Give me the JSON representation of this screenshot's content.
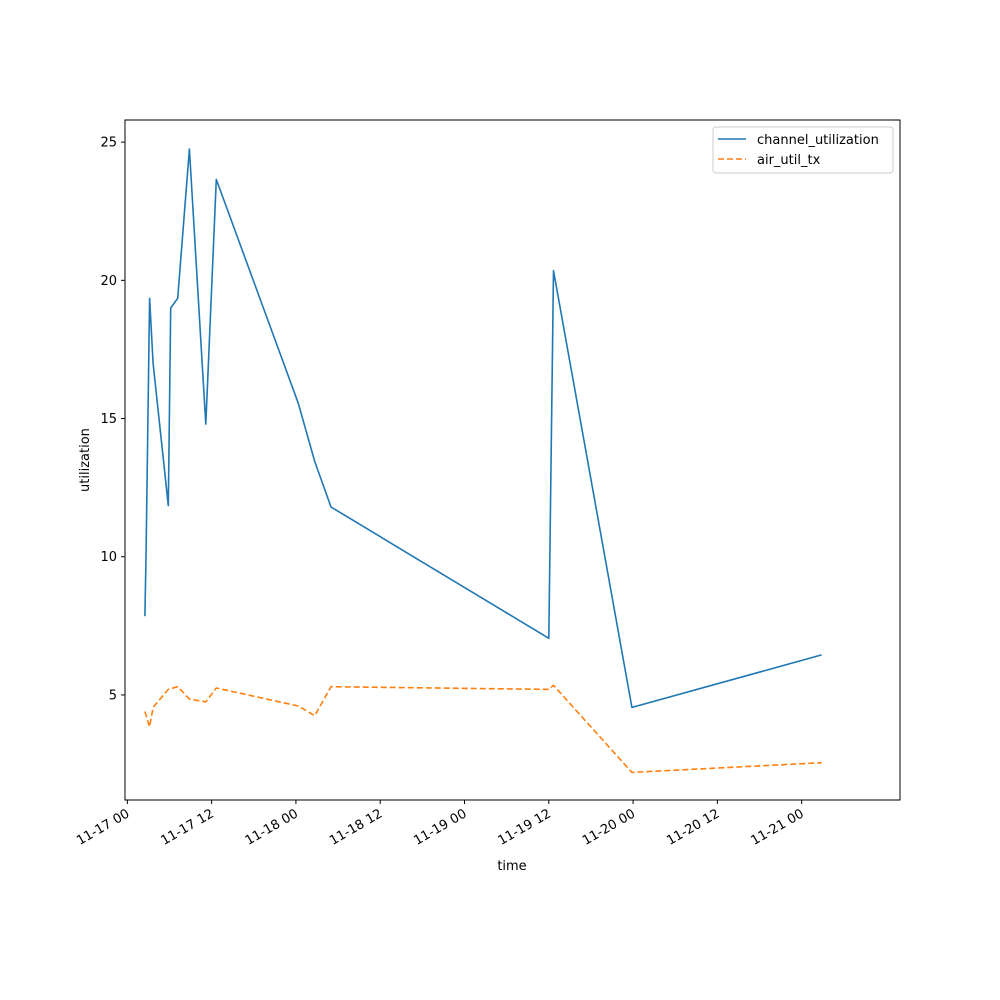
{
  "chart_data": {
    "type": "line",
    "xlabel": "time",
    "ylabel": "utilization",
    "x_type": "datetime",
    "xlim": [
      "2024-11-16T23:40",
      "2024-11-21T14:00"
    ],
    "ylim": [
      1.2,
      25.8
    ],
    "xticks": [
      {
        "value": "2024-11-17T00:00",
        "label": "11-17 00"
      },
      {
        "value": "2024-11-17T12:00",
        "label": "11-17 12"
      },
      {
        "value": "2024-11-18T00:00",
        "label": "11-18 00"
      },
      {
        "value": "2024-11-18T12:00",
        "label": "11-18 12"
      },
      {
        "value": "2024-11-19T00:00",
        "label": "11-19 00"
      },
      {
        "value": "2024-11-19T12:00",
        "label": "11-19 12"
      },
      {
        "value": "2024-11-20T00:00",
        "label": "11-20 00"
      },
      {
        "value": "2024-11-20T12:00",
        "label": "11-20 12"
      },
      {
        "value": "2024-11-21T00:00",
        "label": "11-21 00"
      }
    ],
    "yticks": [
      {
        "value": 5,
        "label": "5"
      },
      {
        "value": 10,
        "label": "10"
      },
      {
        "value": 15,
        "label": "15"
      },
      {
        "value": 20,
        "label": "20"
      },
      {
        "value": 25,
        "label": "25"
      }
    ],
    "legend_position": "top-right",
    "grid": false,
    "series": [
      {
        "name": "channel_utilization",
        "color": "#1f77b4",
        "dash": "solid",
        "points": [
          {
            "x": "2024-11-17T02:30",
            "y": 7.85
          },
          {
            "x": "2024-11-17T02:40",
            "y": 10.2
          },
          {
            "x": "2024-11-17T03:10",
            "y": 19.35
          },
          {
            "x": "2024-11-17T03:40",
            "y": 17.0
          },
          {
            "x": "2024-11-17T05:50",
            "y": 11.85
          },
          {
            "x": "2024-11-17T06:10",
            "y": 19.0
          },
          {
            "x": "2024-11-17T07:10",
            "y": 19.35
          },
          {
            "x": "2024-11-17T08:50",
            "y": 24.75
          },
          {
            "x": "2024-11-17T11:10",
            "y": 14.8
          },
          {
            "x": "2024-11-17T12:40",
            "y": 23.65
          },
          {
            "x": "2024-11-18T00:20",
            "y": 15.55
          },
          {
            "x": "2024-11-18T02:40",
            "y": 13.45
          },
          {
            "x": "2024-11-18T05:00",
            "y": 11.8
          },
          {
            "x": "2024-11-19T12:00",
            "y": 7.05
          },
          {
            "x": "2024-11-19T12:40",
            "y": 20.35
          },
          {
            "x": "2024-11-19T23:50",
            "y": 4.55
          },
          {
            "x": "2024-11-21T02:50",
            "y": 6.45
          }
        ]
      },
      {
        "name": "air_util_tx",
        "color": "#ff7f0e",
        "dash": "dashed",
        "points": [
          {
            "x": "2024-11-17T02:30",
            "y": 4.4
          },
          {
            "x": "2024-11-17T03:10",
            "y": 3.85
          },
          {
            "x": "2024-11-17T03:40",
            "y": 4.55
          },
          {
            "x": "2024-11-17T05:50",
            "y": 5.2
          },
          {
            "x": "2024-11-17T07:10",
            "y": 5.3
          },
          {
            "x": "2024-11-17T08:50",
            "y": 4.85
          },
          {
            "x": "2024-11-17T11:10",
            "y": 4.75
          },
          {
            "x": "2024-11-17T12:40",
            "y": 5.25
          },
          {
            "x": "2024-11-18T00:20",
            "y": 4.6
          },
          {
            "x": "2024-11-18T02:40",
            "y": 4.25
          },
          {
            "x": "2024-11-18T05:00",
            "y": 5.3
          },
          {
            "x": "2024-11-19T12:00",
            "y": 5.2
          },
          {
            "x": "2024-11-19T12:40",
            "y": 5.35
          },
          {
            "x": "2024-11-19T23:50",
            "y": 2.2
          },
          {
            "x": "2024-11-21T02:50",
            "y": 2.55
          }
        ]
      }
    ]
  }
}
